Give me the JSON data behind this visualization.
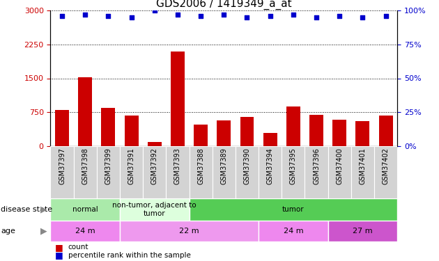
{
  "title": "GDS2006 / 1419349_a_at",
  "samples": [
    "GSM37397",
    "GSM37398",
    "GSM37399",
    "GSM37391",
    "GSM37392",
    "GSM37393",
    "GSM37388",
    "GSM37389",
    "GSM37390",
    "GSM37394",
    "GSM37395",
    "GSM37396",
    "GSM37400",
    "GSM37401",
    "GSM37402"
  ],
  "counts": [
    800,
    1530,
    850,
    670,
    100,
    2100,
    480,
    570,
    650,
    300,
    880,
    700,
    580,
    550,
    680
  ],
  "percentiles": [
    96,
    97,
    96,
    95,
    100,
    97,
    96,
    97,
    95,
    96,
    97,
    95,
    96,
    95,
    96
  ],
  "ylim_left": [
    0,
    3000
  ],
  "ylim_right": [
    0,
    100
  ],
  "yticks_left": [
    0,
    750,
    1500,
    2250,
    3000
  ],
  "yticks_right": [
    0,
    25,
    50,
    75,
    100
  ],
  "bar_color": "#cc0000",
  "dot_color": "#0000cc",
  "bar_width": 0.6,
  "disease_state_groups": [
    {
      "label": "normal",
      "start": 0,
      "end": 3,
      "color": "#aaeaaa"
    },
    {
      "label": "non-tumor, adjacent to\ntumor",
      "start": 3,
      "end": 6,
      "color": "#ddffdd"
    },
    {
      "label": "tumor",
      "start": 6,
      "end": 15,
      "color": "#55cc55"
    }
  ],
  "age_groups": [
    {
      "label": "24 m",
      "start": 0,
      "end": 3,
      "color": "#ee88ee"
    },
    {
      "label": "22 m",
      "start": 3,
      "end": 9,
      "color": "#ee99ee"
    },
    {
      "label": "24 m",
      "start": 9,
      "end": 12,
      "color": "#ee88ee"
    },
    {
      "label": "27 m",
      "start": 12,
      "end": 15,
      "color": "#cc55cc"
    }
  ],
  "legend_count_label": "count",
  "legend_pct_label": "percentile rank within the sample",
  "disease_state_label": "disease state",
  "age_label": "age",
  "bg_color": "#ffffff",
  "tick_label_color_left": "#cc0000",
  "tick_label_color_right": "#0000cc",
  "grid_color": "#000000",
  "figure_width": 6.3,
  "figure_height": 3.75,
  "title_fontsize": 11,
  "axis_fontsize": 8,
  "xticklabel_fontsize": 7,
  "annot_fontsize": 8,
  "legend_fontsize": 7.5
}
